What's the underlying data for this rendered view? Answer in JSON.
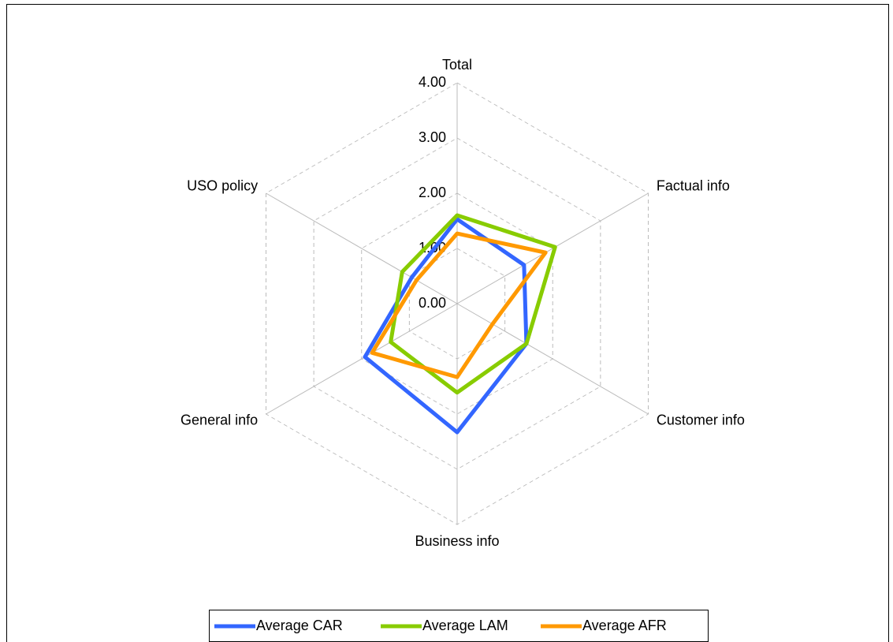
{
  "chart_data": {
    "type": "radar",
    "categories": [
      "Total",
      "Factual info",
      "Customer info",
      "Business info",
      "General info",
      "USO policy"
    ],
    "series": [
      {
        "name": "Average CAR",
        "color": "#3366ff",
        "values": [
          1.53,
          1.4,
          1.45,
          2.33,
          1.93,
          0.95
        ]
      },
      {
        "name": "Average LAM",
        "color": "#88cc00",
        "values": [
          1.6,
          2.05,
          1.45,
          1.61,
          1.39,
          1.15
        ]
      },
      {
        "name": "Average AFR",
        "color": "#ff9900",
        "values": [
          1.27,
          1.85,
          0.74,
          1.33,
          1.78,
          0.85
        ]
      }
    ],
    "ylim": [
      0,
      4
    ],
    "yticks": [
      {
        "value": 0,
        "label": "0.00"
      },
      {
        "value": 1,
        "label": "1.00"
      },
      {
        "value": 2,
        "label": "2.00"
      },
      {
        "value": 3,
        "label": "3.00"
      },
      {
        "value": 4,
        "label": "4.00"
      }
    ],
    "grid": true,
    "legend": "bottom"
  }
}
